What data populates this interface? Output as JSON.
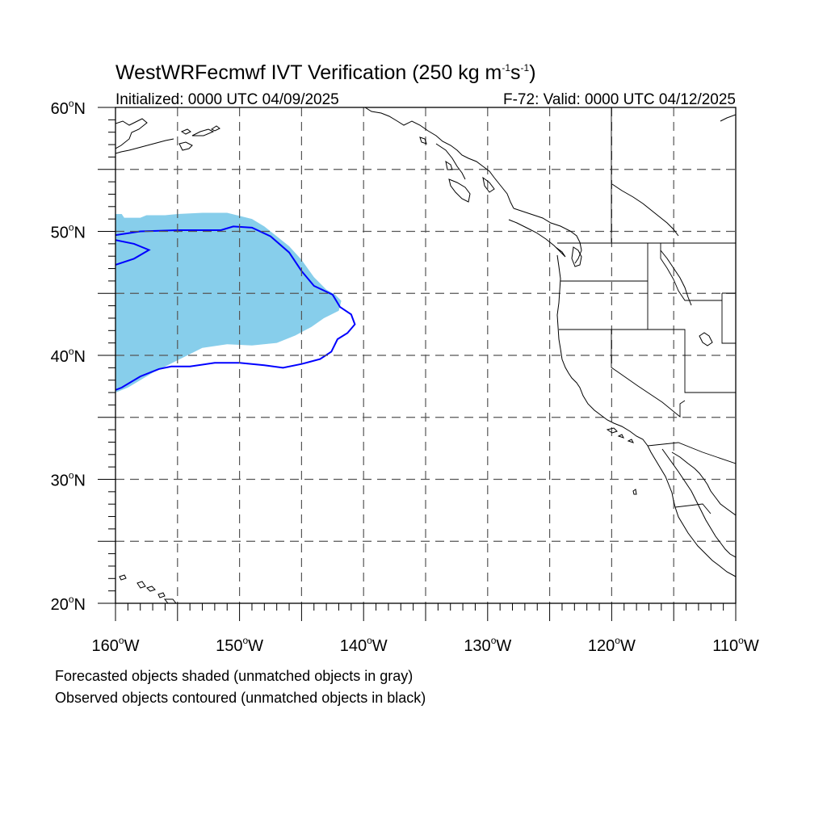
{
  "title": {
    "prefix": "WestWRFecmwf IVT Verification (250 kg m",
    "sup1": "-1",
    "mid": "s",
    "sup2": "-1",
    "suffix": ")"
  },
  "initialized": "Initialized: 0000 UTC 04/09/2025",
  "valid": "F-72: Valid: 0000 UTC 04/12/2025",
  "map": {
    "lon_range": [
      -160,
      -110
    ],
    "lat_range": [
      20,
      60
    ],
    "grid_lons": [
      -155,
      -150,
      -145,
      -140,
      -135,
      -130,
      -125,
      -120,
      -115
    ],
    "grid_lats": [
      25,
      30,
      35,
      40,
      45,
      50,
      55
    ],
    "forecast_color": "#87ceeb",
    "observed_color": "#0000ff",
    "forecast_object": [
      [
        -160,
        51.4
      ],
      [
        -159.5,
        51.4
      ],
      [
        -159.3,
        51.1
      ],
      [
        -158,
        51.1
      ],
      [
        -157.5,
        51.3
      ],
      [
        -156,
        51.3
      ],
      [
        -155,
        51.4
      ],
      [
        -153,
        51.5
      ],
      [
        -151,
        51.5
      ],
      [
        -149,
        51.0
      ],
      [
        -148,
        50.4
      ],
      [
        -147,
        49.6
      ],
      [
        -146,
        48.8
      ],
      [
        -145,
        47.7
      ],
      [
        -144,
        46.3
      ],
      [
        -143,
        45.3
      ],
      [
        -142.3,
        44.9
      ],
      [
        -141.8,
        44.4
      ],
      [
        -142,
        43.6
      ],
      [
        -143.2,
        43.0
      ],
      [
        -144.2,
        42.3
      ],
      [
        -145.5,
        41.6
      ],
      [
        -147,
        41.0
      ],
      [
        -149,
        40.8
      ],
      [
        -151,
        40.9
      ],
      [
        -153,
        40.6
      ],
      [
        -155,
        39.6
      ],
      [
        -157,
        38.6
      ],
      [
        -159,
        37.4
      ],
      [
        -160,
        37.0
      ]
    ],
    "observed_object": [
      [
        -160,
        49.7
      ],
      [
        -158,
        50.0
      ],
      [
        -155,
        50.1
      ],
      [
        -151.5,
        50.1
      ],
      [
        -150.5,
        50.4
      ],
      [
        -149,
        50.3
      ],
      [
        -147.5,
        49.6
      ],
      [
        -146,
        48.3
      ],
      [
        -145,
        46.8
      ],
      [
        -144,
        45.6
      ],
      [
        -142.5,
        44.9
      ],
      [
        -141.9,
        43.9
      ],
      [
        -141,
        43.3
      ],
      [
        -140.7,
        42.5
      ],
      [
        -141.3,
        41.8
      ],
      [
        -142.1,
        41.3
      ],
      [
        -142.6,
        40.3
      ],
      [
        -143.5,
        39.7
      ],
      [
        -145,
        39.3
      ],
      [
        -146.5,
        39.0
      ],
      [
        -148,
        39.2
      ],
      [
        -150,
        39.4
      ],
      [
        -152,
        39.4
      ],
      [
        -154,
        39.1
      ],
      [
        -155.5,
        39.1
      ],
      [
        -156.5,
        38.9
      ],
      [
        -158,
        38.3
      ],
      [
        -159.5,
        37.4
      ],
      [
        -160,
        37.2
      ]
    ],
    "observed_inner_lobe": [
      [
        -160,
        49.3
      ],
      [
        -158.5,
        49.0
      ],
      [
        -157.3,
        48.5
      ],
      [
        -158.5,
        47.8
      ],
      [
        -160,
        47.3
      ]
    ]
  },
  "axes": {
    "lat_labels": [
      {
        "deg": "60",
        "hemi": "N",
        "lat": 60
      },
      {
        "deg": "50",
        "hemi": "N",
        "lat": 50
      },
      {
        "deg": "40",
        "hemi": "N",
        "lat": 40
      },
      {
        "deg": "30",
        "hemi": "N",
        "lat": 30
      },
      {
        "deg": "20",
        "hemi": "N",
        "lat": 20
      }
    ],
    "lon_labels": [
      {
        "deg": "160",
        "hemi": "W",
        "lon": -160
      },
      {
        "deg": "150",
        "hemi": "W",
        "lon": -150
      },
      {
        "deg": "140",
        "hemi": "W",
        "lon": -140
      },
      {
        "deg": "130",
        "hemi": "W",
        "lon": -130
      },
      {
        "deg": "120",
        "hemi": "W",
        "lon": -120
      },
      {
        "deg": "110",
        "hemi": "W",
        "lon": -110
      }
    ]
  },
  "notes": {
    "line1": "Forecasted objects shaded (unmatched objects in gray)",
    "line2": "Observed objects contoured (unmatched objects in black)"
  }
}
